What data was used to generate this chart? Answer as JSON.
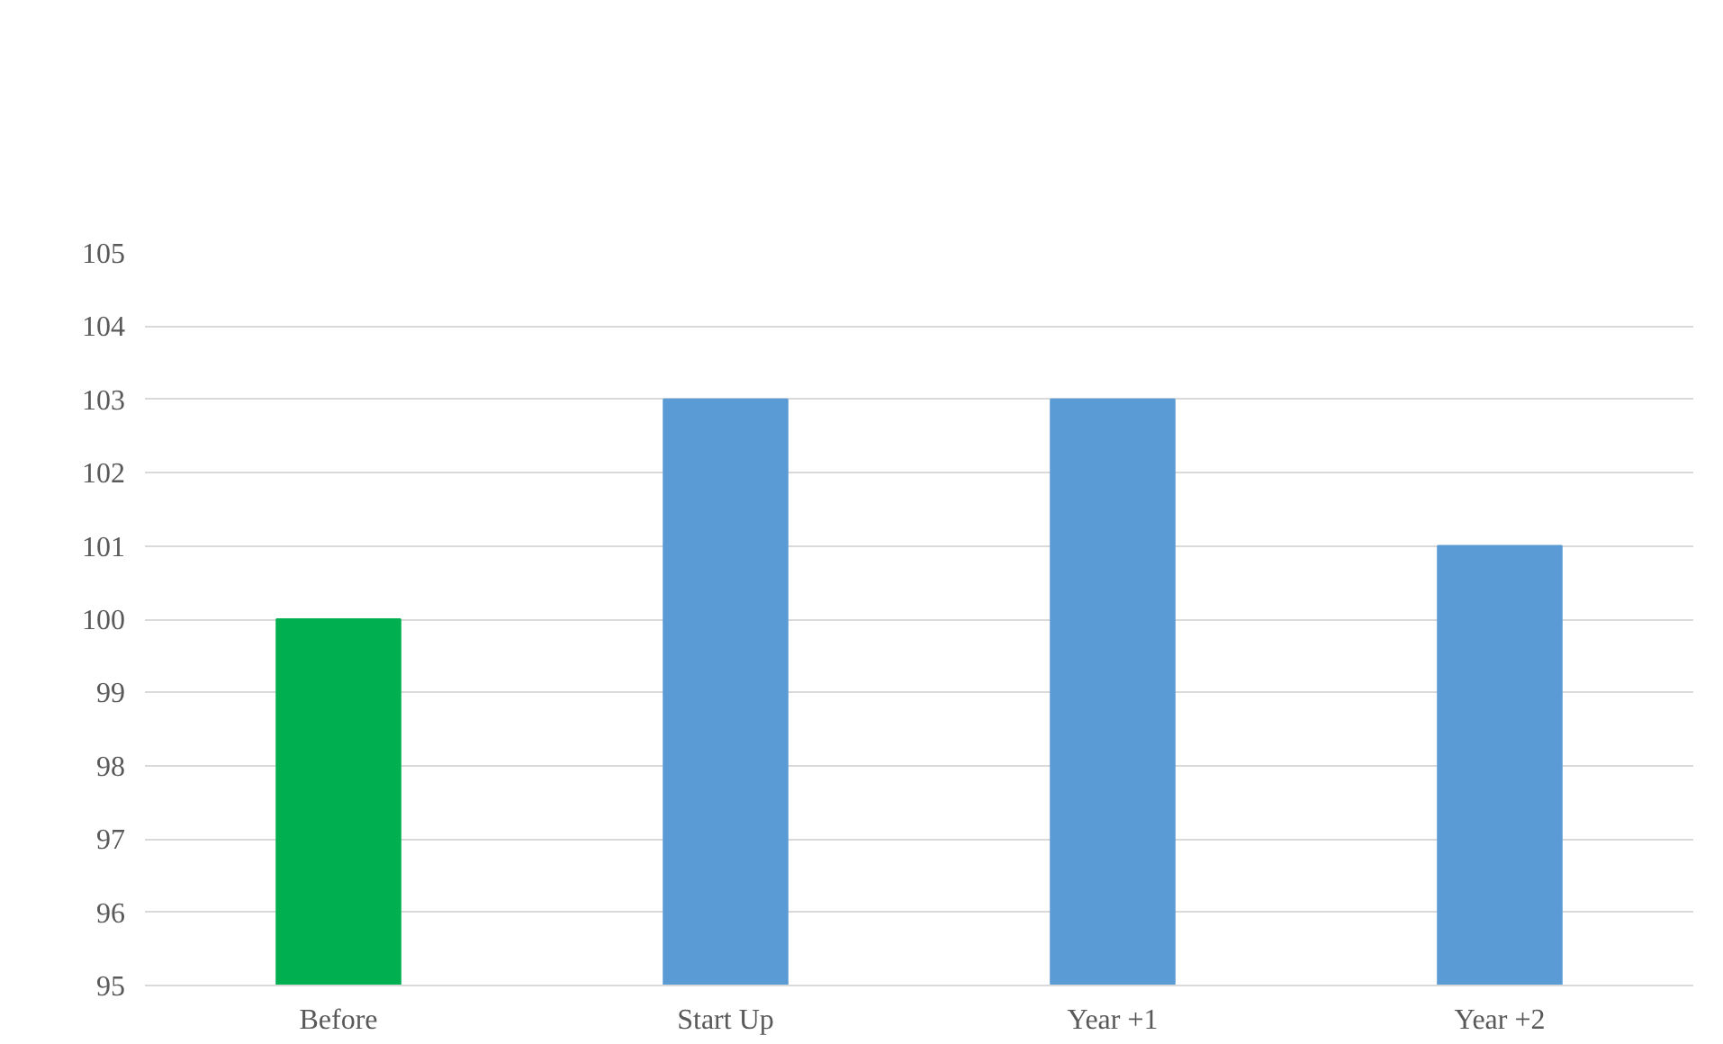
{
  "chart_data": {
    "type": "bar",
    "categories": [
      "Before",
      "Start Up",
      "Year +1",
      "Year +2"
    ],
    "values": [
      100,
      103,
      103,
      101
    ],
    "colors": [
      "#00b050",
      "#5b9bd5",
      "#5b9bd5",
      "#5b9bd5"
    ],
    "ylim": [
      95,
      105
    ],
    "yticks": [
      95,
      96,
      97,
      98,
      99,
      100,
      101,
      102,
      103,
      104,
      105
    ],
    "grid": "y"
  }
}
